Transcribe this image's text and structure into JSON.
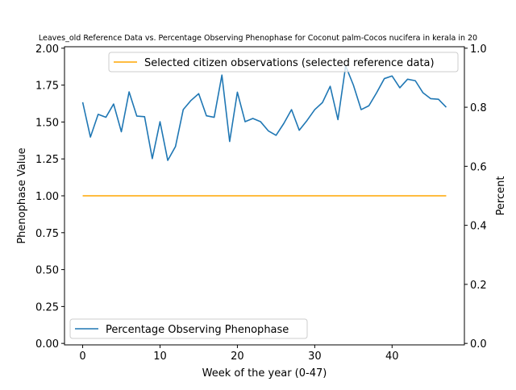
{
  "chart_data": {
    "type": "line",
    "title": "Leaves_old Reference Data vs. Percentage Observing Phenophase for Coconut palm-Cocos nucifera in kerala in 20",
    "xlabel": "Week of the year (0-47)",
    "ylabel_left": "Phenophase Value",
    "ylabel_right": "Percent",
    "xlim": [
      -2.35,
      49.35
    ],
    "ylim_left": [
      -0.01,
      2.01
    ],
    "ylim_right": [
      -0.005,
      1.005
    ],
    "x_ticks": [
      0,
      10,
      20,
      30,
      40
    ],
    "y_ticks_left": [
      0.0,
      0.25,
      0.5,
      0.75,
      1.0,
      1.25,
      1.5,
      1.75,
      2.0
    ],
    "y_ticks_right": [
      0.0,
      0.2,
      0.4,
      0.6,
      0.8,
      1.0
    ],
    "grid": false,
    "series": [
      {
        "name": "Selected citizen observations (selected reference data)",
        "axis": "left",
        "color": "#ffa500",
        "x": [
          0,
          47
        ],
        "values": [
          1.0,
          1.0
        ],
        "legend_position": "upper-right"
      },
      {
        "name": "Percentage Observing Phenophase",
        "axis": "right",
        "color": "#1f77b4",
        "legend_position": "lower-left",
        "x": [
          0,
          1,
          2,
          3,
          4,
          5,
          6,
          7,
          8,
          9,
          10,
          11,
          12,
          13,
          14,
          15,
          16,
          17,
          18,
          19,
          20,
          21,
          22,
          23,
          24,
          25,
          26,
          27,
          28,
          29,
          30,
          31,
          32,
          33,
          34,
          35,
          36,
          37,
          38,
          39,
          40,
          41,
          42,
          43,
          44,
          45,
          46,
          47
        ],
        "values": [
          0.817,
          0.699,
          0.776,
          0.766,
          0.811,
          0.717,
          0.852,
          0.77,
          0.768,
          0.626,
          0.751,
          0.62,
          0.667,
          0.792,
          0.823,
          0.846,
          0.771,
          0.766,
          0.909,
          0.684,
          0.851,
          0.751,
          0.762,
          0.751,
          0.72,
          0.705,
          0.745,
          0.792,
          0.722,
          0.755,
          0.792,
          0.816,
          0.871,
          0.758,
          0.94,
          0.875,
          0.792,
          0.805,
          0.849,
          0.897,
          0.906,
          0.866,
          0.895,
          0.89,
          0.849,
          0.829,
          0.827,
          0.8
        ]
      }
    ]
  }
}
